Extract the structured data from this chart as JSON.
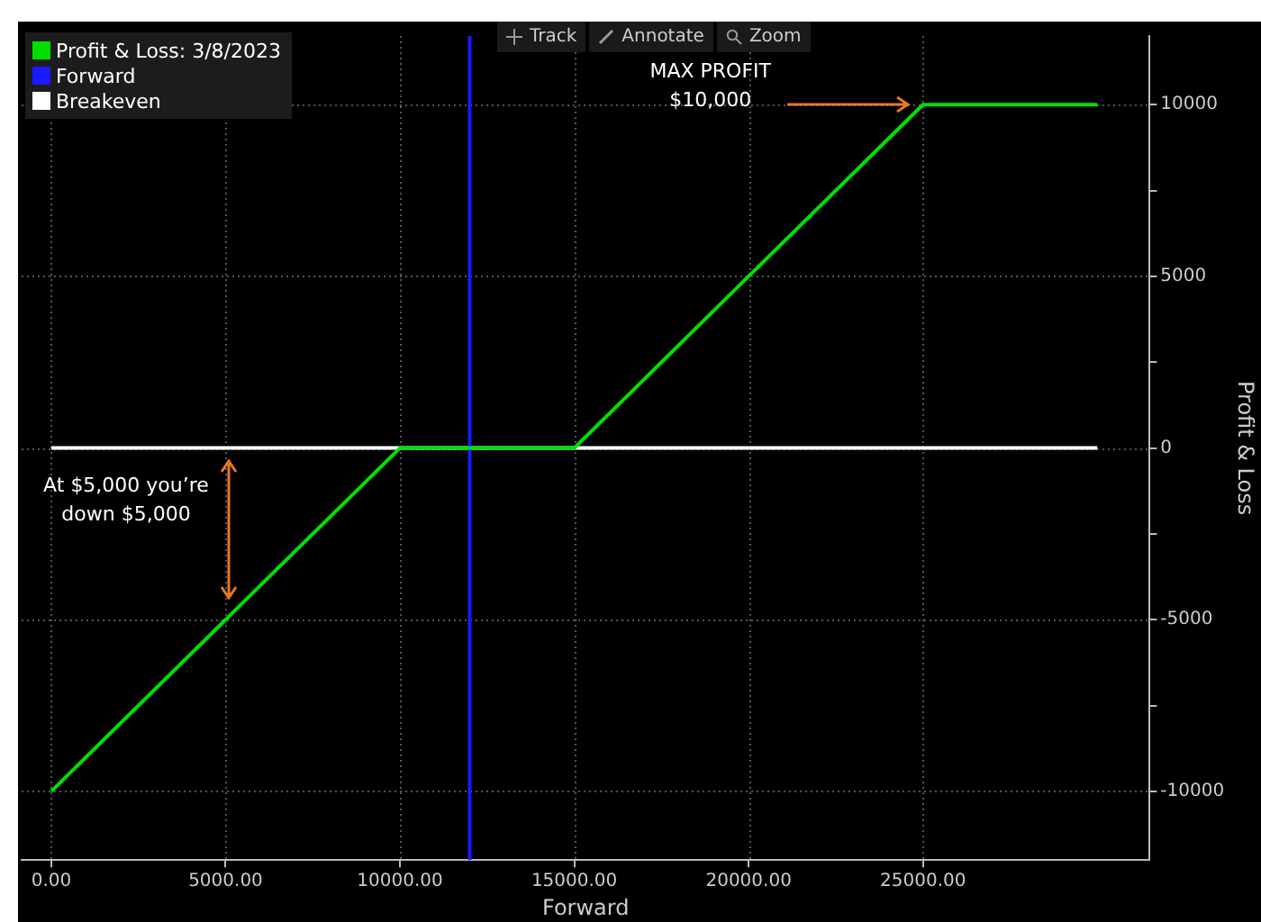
{
  "chart_data": {
    "type": "line",
    "xlabel": "Forward",
    "ylabel": "Profit & Loss",
    "xlim": [
      -850,
      31500
    ],
    "ylim": [
      -12000,
      12000
    ],
    "xticks": [
      {
        "value": 0,
        "label": "0.00"
      },
      {
        "value": 5000,
        "label": "5000.00"
      },
      {
        "value": 10000,
        "label": "10000.00"
      },
      {
        "value": 15000,
        "label": "15000.00"
      },
      {
        "value": 20000,
        "label": "20000.00"
      },
      {
        "value": 25000,
        "label": "25000.00"
      }
    ],
    "yticks": [
      -10000,
      {
        "value": -7500,
        "label": null
      },
      -5000,
      {
        "value": -2500,
        "label": null
      },
      0,
      {
        "value": 2500,
        "label": null
      },
      5000,
      {
        "value": 7500,
        "label": null
      },
      10000
    ],
    "grid": true,
    "legend": "top left",
    "marker": "none",
    "line_style": "solid",
    "series": [
      {
        "name": "Profit & Loss: 3/8/2023",
        "color": "#00e000",
        "x": [
          0,
          10000,
          15000,
          25000,
          30000
        ],
        "values": [
          -10000,
          0,
          0,
          10000,
          10000
        ]
      },
      {
        "name": "Forward",
        "color": "#1a1aff",
        "x": [
          12000,
          12000
        ],
        "values": [
          -12000,
          12000
        ]
      },
      {
        "name": "Breakeven",
        "color": "#ffffff",
        "x": [
          0,
          30000
        ],
        "values": [
          0,
          0
        ]
      }
    ],
    "annotations": [
      {
        "text": "MAX PROFIT\n$10,000",
        "x": 25000,
        "y": 10000
      },
      "At $5,000 you’re\ndown $5,000",
      "Track",
      "Annotate",
      "Zoom"
    ]
  }
}
